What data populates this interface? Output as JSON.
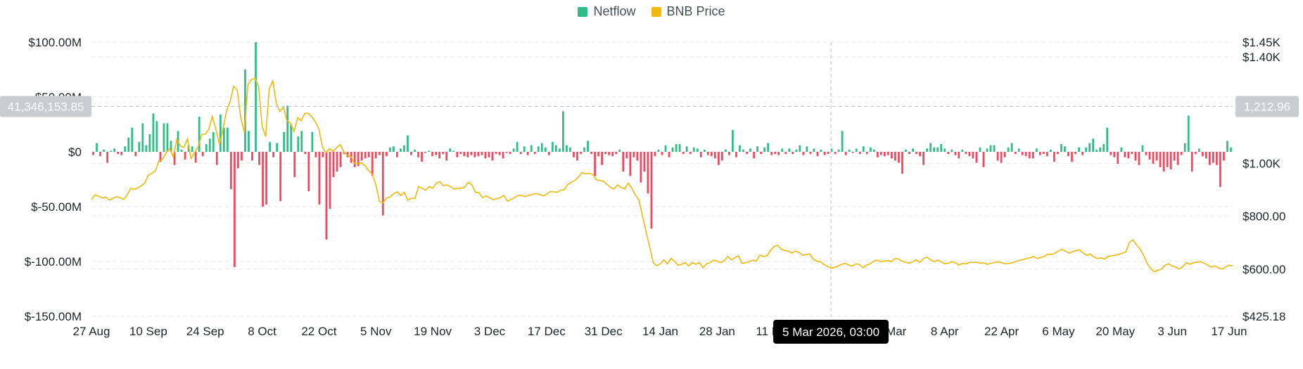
{
  "colors": {
    "netflow_positive": "#2ebd85",
    "netflow_negative": "#f6465d",
    "price_line": "#f0b90b",
    "grid": "#e6e8ea",
    "crosshair": "#b7bdc6",
    "tag_bg": "#c9ccd1",
    "tooltip_bg": "#000000"
  },
  "legend": [
    {
      "label": "Netflow",
      "color": "#2ebd85",
      "icon": "square-icon"
    },
    {
      "label": "BNB Price",
      "color": "#f0b90b",
      "icon": "square-icon"
    }
  ],
  "crosshair": {
    "left_value": "41,346,153.85",
    "right_value": "1,212.96",
    "date_label": "5 Mar 2026, 03:00"
  },
  "chart_data": {
    "type": "bar+line",
    "x_labels": [
      "27 Aug",
      "10 Sep",
      "24 Sep",
      "8 Oct",
      "22 Oct",
      "5 Nov",
      "19 Nov",
      "3 Dec",
      "17 Dec",
      "31 Dec",
      "14 Jan",
      "28 Jan",
      "11 Feb",
      "25 Mar",
      "8 Apr",
      "22 Apr",
      "6 May",
      "20 May",
      "3 Jun",
      "17 Jun"
    ],
    "y_left": {
      "ticks": [
        "$100.00M",
        "$50.00M",
        "$0",
        "$-50.00M",
        "$-100.00M",
        "$-150.00M"
      ],
      "values": [
        100,
        50,
        0,
        -50,
        -100,
        -150
      ],
      "range": [
        -150,
        100
      ],
      "unit": "M USD"
    },
    "y_right": {
      "ticks": [
        "$1.45K",
        "$1.40K",
        "$1.00K",
        "$800.00",
        "$600.00",
        "$425.18"
      ],
      "values": [
        1450,
        1400,
        1000,
        800,
        600,
        425.18
      ],
      "range": [
        425.18,
        1450
      ]
    },
    "series": [
      {
        "name": "Netflow",
        "kind": "bar",
        "values": [
          -3,
          8,
          -4,
          2,
          -10,
          1,
          3,
          -2,
          -3,
          5,
          13,
          22,
          -4,
          9,
          26,
          6,
          16,
          35,
          28,
          -9,
          26,
          26,
          10,
          -12,
          19,
          2,
          -7,
          6,
          5,
          -10,
          32,
          -4,
          7,
          12,
          18,
          -12,
          34,
          22,
          22,
          -34,
          -105,
          -15,
          -8,
          75,
          19,
          -8,
          100,
          -12,
          -50,
          -48,
          9,
          -5,
          8,
          -45,
          18,
          42,
          25,
          -23,
          14,
          19,
          -2,
          -36,
          18,
          -5,
          -48,
          -5,
          -80,
          -52,
          -23,
          -18,
          -14,
          -2,
          -5,
          -10,
          -14,
          -13,
          -8,
          -6,
          -5,
          -22,
          -6,
          -3,
          -58,
          -4,
          4,
          5,
          -5,
          3,
          6,
          15,
          -3,
          2,
          -5,
          -9,
          -1,
          1,
          -4,
          -3,
          -6,
          -2,
          -8,
          3,
          1,
          -5,
          -2,
          -4,
          -5,
          -3,
          -5,
          -4,
          -3,
          -6,
          -5,
          -8,
          -2,
          -3,
          -6,
          -1,
          -2,
          3,
          9,
          -2,
          5,
          -3,
          6,
          -2,
          5,
          8,
          4,
          -3,
          9,
          6,
          3,
          37,
          6,
          4,
          -5,
          -8,
          -2,
          4,
          10,
          -2,
          -22,
          -4,
          -12,
          -2,
          -3,
          -4,
          -2,
          2,
          -18,
          -6,
          -22,
          -5,
          -8,
          -28,
          -18,
          -38,
          -70,
          -4,
          2,
          -3,
          6,
          -5,
          4,
          7,
          7,
          -2,
          5,
          -2,
          4,
          3,
          -5,
          2,
          -3,
          -4,
          -6,
          -12,
          -8,
          2,
          -3,
          20,
          -5,
          6,
          2,
          -2,
          3,
          -6,
          5,
          -2,
          4,
          8,
          -3,
          -2,
          -3,
          3,
          -2,
          3,
          -2,
          2,
          6,
          -3,
          5,
          -2,
          3,
          -4,
          2,
          -3,
          -2,
          3,
          -2,
          2,
          19,
          -3,
          2,
          -1,
          3,
          -2,
          5,
          -2,
          4,
          2,
          -5,
          -3,
          -4,
          -3,
          -6,
          -8,
          -10,
          -20,
          2,
          -2,
          3,
          -2,
          -4,
          -12,
          3,
          8,
          4,
          4,
          7,
          3,
          -2,
          2,
          -3,
          -6,
          2,
          -2,
          -4,
          -6,
          -10,
          4,
          -14,
          3,
          6,
          6,
          -8,
          -10,
          -5,
          4,
          8,
          -2,
          3,
          -3,
          -4,
          -6,
          -6,
          3,
          -3,
          -2,
          -4,
          2,
          -9,
          -2,
          7,
          5,
          -4,
          -9,
          -2,
          4,
          -3,
          4,
          8,
          12,
          2,
          4,
          7,
          22,
          -3,
          -5,
          -11,
          4,
          -5,
          -6,
          -2,
          -8,
          -12,
          6,
          -3,
          -7,
          -11,
          -8,
          -14,
          -18,
          -14,
          -16,
          -8,
          -12,
          -3,
          8,
          33,
          -18,
          -2,
          3,
          -4,
          -6,
          -12,
          -10,
          -12,
          -32,
          -8,
          10,
          4
        ]
      },
      {
        "name": "BNB Price",
        "kind": "line",
        "values": [
          862,
          880,
          875,
          868,
          872,
          860,
          866,
          873,
          870,
          862,
          878,
          905,
          902,
          906,
          915,
          925,
          955,
          962,
          972,
          1010,
          1015,
          1040,
          1055,
          1025,
          1090,
          1065,
          1060,
          1092,
          1018,
          1040,
          1062,
          1108,
          1110,
          1128,
          1176,
          1128,
          1070,
          1130,
          1198,
          1232,
          1290,
          1275,
          1172,
          1116,
          1295,
          1315,
          1320,
          1290,
          1140,
          1100,
          1280,
          1310,
          1225,
          1195,
          1210,
          1160,
          1150,
          1120,
          1172,
          1160,
          1188,
          1188,
          1175,
          1155,
          1128,
          1060,
          1040,
          1055,
          1045,
          1060,
          1070,
          1042,
          1030,
          1025,
          1000,
          998,
          1002,
          990,
          972,
          958,
          920,
          855,
          850,
          868,
          872,
          885,
          892,
          878,
          890,
          860,
          868,
          866,
          912,
          905,
          898,
          912,
          905,
          925,
          930,
          915,
          918,
          912,
          902,
          905,
          905,
          910,
          928,
          918,
          890,
          888,
          870,
          876,
          870,
          862,
          865,
          870,
          878,
          856,
          862,
          870,
          878,
          878,
          873,
          879,
          882,
          885,
          882,
          876,
          883,
          893,
          892,
          890,
          898,
          900,
          920,
          928,
          935,
          948,
          965,
          960,
          962,
          958,
          938,
          935,
          932,
          920,
          908,
          903,
          918,
          908,
          903,
          925,
          905,
          880,
          860,
          800,
          740,
          685,
          625,
          612,
          620,
          635,
          620,
          640,
          630,
          615,
          618,
          625,
          612,
          625,
          618,
          625,
          606,
          620,
          625,
          634,
          630,
          625,
          632,
          648,
          635,
          643,
          650,
          622,
          624,
          628,
          634,
          630,
          652,
          648,
          650,
          670,
          685,
          690,
          675,
          670,
          668,
          660,
          668,
          663,
          652,
          654,
          658,
          638,
          630,
          628,
          618,
          610,
          604,
          606,
          612,
          618,
          622,
          615,
          612,
          620,
          618,
          605,
          615,
          620,
          630,
          634,
          628,
          630,
          632,
          628,
          640,
          638,
          630,
          626,
          622,
          628,
          635,
          625,
          640,
          645,
          635,
          628,
          634,
          628,
          620,
          622,
          628,
          624,
          615,
          622,
          620,
          626,
          625,
          626,
          622,
          624,
          618,
          622,
          625,
          628,
          624,
          620,
          621,
          624,
          628,
          634,
          636,
          640,
          642,
          648,
          640,
          644,
          648,
          656,
          655,
          660,
          668,
          674,
          668,
          660,
          666,
          670,
          672,
          660,
          652,
          656,
          646,
          640,
          642,
          638,
          648,
          650,
          652,
          656,
          660,
          665,
          702,
          710,
          690,
          675,
          650,
          620,
          602,
          590,
          596,
          600,
          615,
          620,
          612,
          608,
          600,
          610,
          625,
          618,
          624,
          626,
          628,
          622,
          615,
          608,
          612,
          605,
          600,
          608,
          615,
          612
        ]
      }
    ]
  }
}
